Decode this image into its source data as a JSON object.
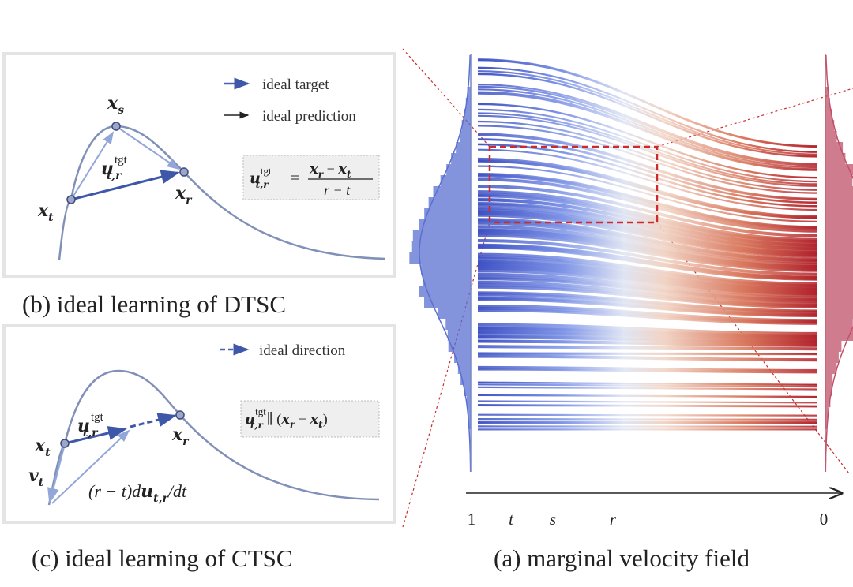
{
  "panel_b": {
    "caption": "(b) ideal learning of DTSC",
    "legend": [
      {
        "label": "ideal target",
        "color": "#4a62b0"
      },
      {
        "label": "ideal prediction",
        "color": "#222222"
      }
    ],
    "points": {
      "xt": "x",
      "xt_sub": "t",
      "xs": "x",
      "xs_sub": "s",
      "xr": "x",
      "xr_sub": "r"
    },
    "vector_label": {
      "base": "u",
      "sup": "tgt",
      "sub": "t,r"
    },
    "formula": {
      "lhs": "u",
      "lhs_sup": "tgt",
      "lhs_sub": "t,r",
      "eq": "=",
      "numerator": "x",
      "num_sub1": "r",
      "minus": " − ",
      "num_x2": "x",
      "num_sub2": "t",
      "denominator": "r − t"
    }
  },
  "panel_c": {
    "caption": "(c) ideal learning of CTSC",
    "legend": [
      {
        "label": "ideal direction",
        "color": "#4a62b0"
      }
    ],
    "points": {
      "xt": "x",
      "xt_sub": "t",
      "xr": "x",
      "xr_sub": "r",
      "vt": "v",
      "vt_sub": "t"
    },
    "vector_label": {
      "base": "u",
      "sup": "tgt",
      "sub": "t,r"
    },
    "derivative_label": {
      "pre": "(r − t)d",
      "u": "u",
      "sub": "t,r",
      "post": "/dt"
    },
    "formula": {
      "lhs": "u",
      "lhs_sup": "tgt",
      "lhs_sub": "t,r",
      "parallel": " ∥ (",
      "x1": "x",
      "sub1": "r",
      "minus": " − ",
      "x2": "x",
      "sub2": "t",
      "close": ")"
    }
  },
  "panel_a": {
    "caption": "(a) marginal velocity field",
    "axis_ticks": [
      "1",
      "t",
      "s",
      "r",
      "0"
    ],
    "colors": {
      "start": "#3b4cc0",
      "mid": "#eceef4",
      "end": "#b40426",
      "zoom_box": "#cc2b2b"
    }
  }
}
